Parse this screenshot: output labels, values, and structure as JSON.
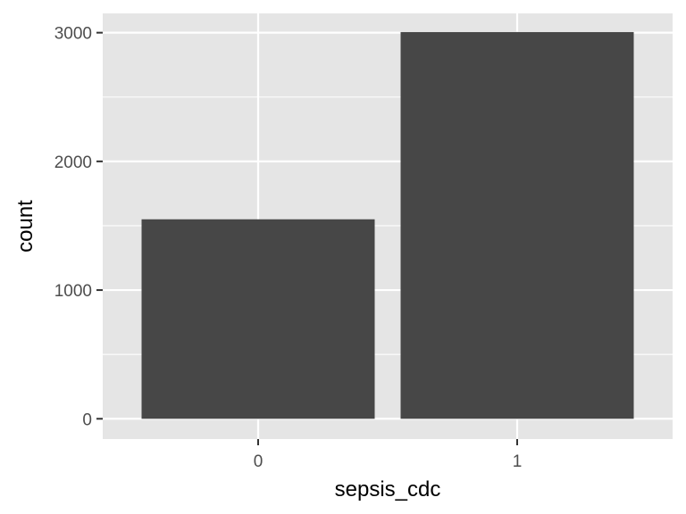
{
  "chart_data": {
    "type": "bar",
    "title": "",
    "xlabel": "sepsis_cdc",
    "ylabel": "count",
    "categories": [
      "0",
      "1"
    ],
    "values": [
      1550,
      3005
    ],
    "ylim": [
      0,
      3150
    ],
    "yticks": [
      0,
      1000,
      2000,
      3000
    ],
    "ytick_labels": [
      "0",
      "1000",
      "2000",
      "3000"
    ],
    "grid": true,
    "legend": "none",
    "colors": {
      "panel": "#e5e5e5",
      "grid": "#ffffff",
      "bar": "#474747",
      "tick": "#333333",
      "tick_text": "#4d4d4d"
    }
  }
}
